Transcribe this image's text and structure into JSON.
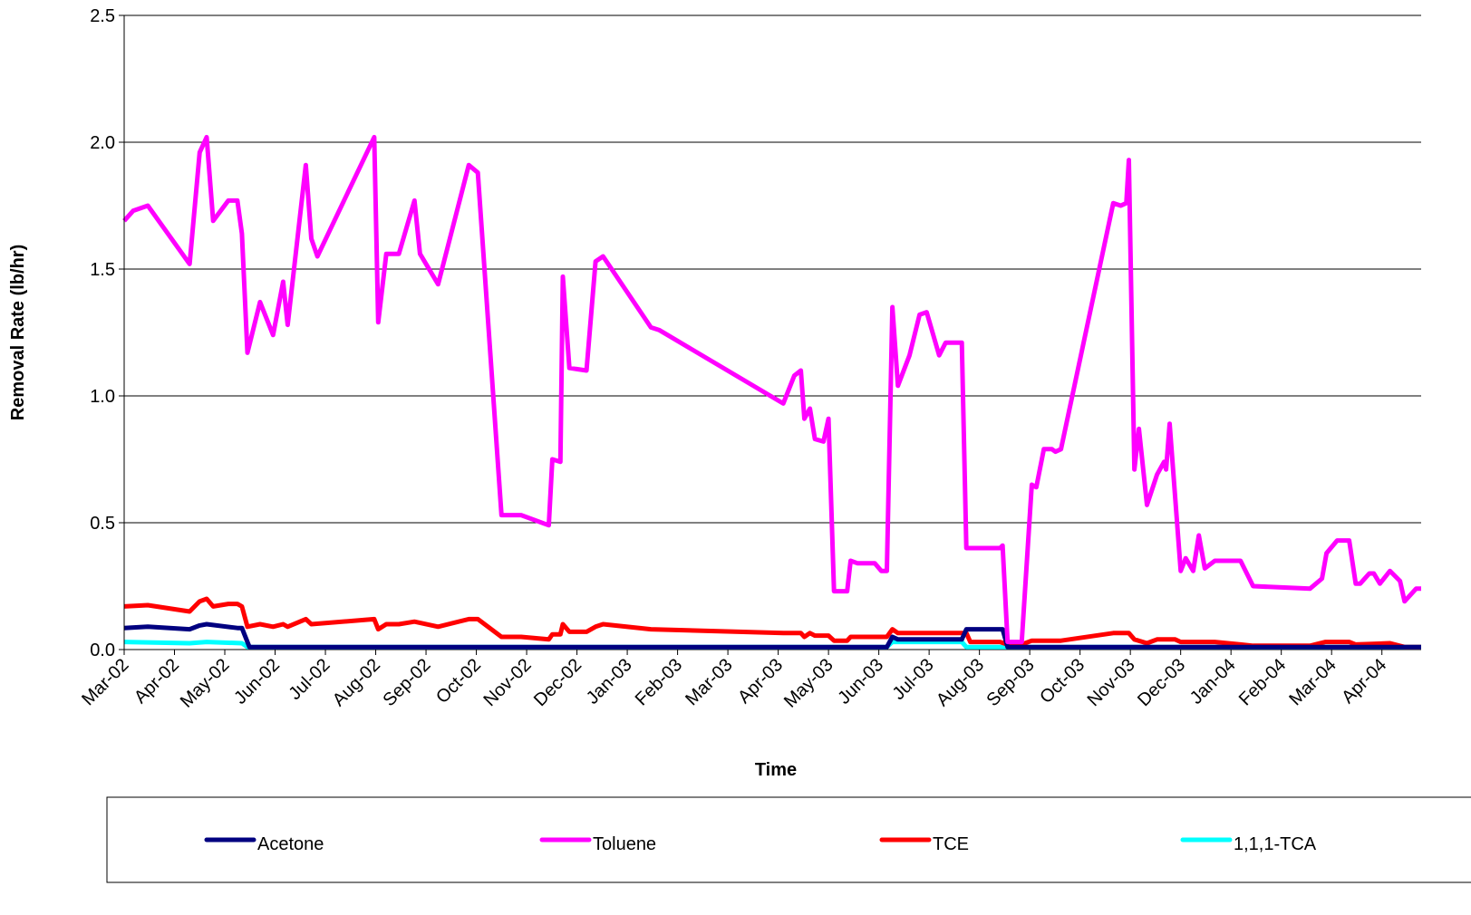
{
  "chart_data": {
    "type": "line",
    "x_label": "Time",
    "y_label": "Removal Rate (lb/hr)",
    "xlim": [
      0,
      25.78
    ],
    "ylim": [
      0,
      2.5
    ],
    "xticks": [
      {
        "value": 0,
        "label": "Mar-02"
      },
      {
        "value": 1,
        "label": "Apr-02"
      },
      {
        "value": 2,
        "label": "May-02"
      },
      {
        "value": 3,
        "label": "Jun-02"
      },
      {
        "value": 4,
        "label": "Jul-02"
      },
      {
        "value": 5,
        "label": "Aug-02"
      },
      {
        "value": 6,
        "label": "Sep-02"
      },
      {
        "value": 7,
        "label": "Oct-02"
      },
      {
        "value": 8,
        "label": "Nov-02"
      },
      {
        "value": 9,
        "label": "Dec-02"
      },
      {
        "value": 10,
        "label": "Jan-03"
      },
      {
        "value": 11,
        "label": "Feb-03"
      },
      {
        "value": 12,
        "label": "Mar-03"
      },
      {
        "value": 13,
        "label": "Apr-03"
      },
      {
        "value": 14,
        "label": "May-03"
      },
      {
        "value": 15,
        "label": "Jun-03"
      },
      {
        "value": 16,
        "label": "Jul-03"
      },
      {
        "value": 17,
        "label": "Aug-03"
      },
      {
        "value": 18,
        "label": "Sep-03"
      },
      {
        "value": 19,
        "label": "Oct-03"
      },
      {
        "value": 20,
        "label": "Nov-03"
      },
      {
        "value": 21,
        "label": "Dec-03"
      },
      {
        "value": 22,
        "label": "Jan-04"
      },
      {
        "value": 23,
        "label": "Feb-04"
      },
      {
        "value": 24,
        "label": "Mar-04"
      },
      {
        "value": 25,
        "label": "Apr-04"
      }
    ],
    "yticks": [
      {
        "value": 0,
        "label": "0.0"
      },
      {
        "value": 0.5,
        "label": "0.5"
      },
      {
        "value": 1,
        "label": "1.0"
      },
      {
        "value": 1.5,
        "label": "1.5"
      },
      {
        "value": 2,
        "label": "2.0"
      },
      {
        "value": 2.5,
        "label": "2.5"
      }
    ],
    "grid": true,
    "legend": "bottom",
    "series": [
      {
        "name": "Acetone",
        "color": "#000080",
        "x": [
          0,
          0.47,
          1.3,
          1.5,
          1.64,
          2.25,
          2.34,
          2.49,
          15.16,
          15.27,
          15.38,
          16.65,
          16.74,
          17.46,
          17.56,
          25.78
        ],
        "values": [
          0.085,
          0.09,
          0.08,
          0.095,
          0.1,
          0.085,
          0.085,
          0.01,
          0.01,
          0.05,
          0.04,
          0.04,
          0.08,
          0.08,
          0.01,
          0.01
        ]
      },
      {
        "name": "Toluene",
        "color": "#ff00ff",
        "x": [
          0,
          0.18,
          0.47,
          1.3,
          1.5,
          1.64,
          1.77,
          2.07,
          2.25,
          2.34,
          2.45,
          2.7,
          2.96,
          3.16,
          3.25,
          3.61,
          3.72,
          3.84,
          4.97,
          5.05,
          5.21,
          5.46,
          5.77,
          5.88,
          6.24,
          6.85,
          7.03,
          7.5,
          7.89,
          8.44,
          8.51,
          8.67,
          8.72,
          8.85,
          9.19,
          9.37,
          9.52,
          10.47,
          10.63,
          13.1,
          13.32,
          13.45,
          13.52,
          13.63,
          13.73,
          13.9,
          14,
          14.11,
          14.37,
          14.44,
          14.58,
          14.92,
          15.05,
          15.16,
          15.27,
          15.38,
          15.61,
          15.81,
          15.95,
          16.2,
          16.33,
          16.65,
          16.74,
          17.41,
          17.46,
          17.56,
          17.84,
          18.04,
          18.13,
          18.28,
          18.44,
          18.51,
          18.62,
          19.66,
          19.81,
          19.92,
          19.97,
          20.08,
          20.17,
          20.33,
          20.53,
          20.67,
          20.71,
          20.78,
          21,
          21.1,
          21.25,
          21.36,
          21.48,
          21.68,
          22.19,
          22.44,
          23.57,
          23.81,
          23.9,
          24.11,
          24.35,
          24.48,
          24.57,
          24.75,
          24.84,
          24.96,
          25.16,
          25.36,
          25.45,
          25.68,
          25.78
        ],
        "values": [
          1.69,
          1.73,
          1.75,
          1.52,
          1.96,
          2.02,
          1.69,
          1.77,
          1.77,
          1.64,
          1.17,
          1.37,
          1.24,
          1.45,
          1.28,
          1.91,
          1.62,
          1.55,
          2.02,
          1.29,
          1.56,
          1.56,
          1.77,
          1.56,
          1.44,
          1.91,
          1.88,
          0.53,
          0.53,
          0.49,
          0.75,
          0.74,
          1.47,
          1.11,
          1.1,
          1.53,
          1.55,
          1.27,
          1.26,
          0.97,
          1.08,
          1.1,
          0.91,
          0.95,
          0.83,
          0.82,
          0.91,
          0.23,
          0.23,
          0.35,
          0.34,
          0.34,
          0.31,
          0.31,
          1.35,
          1.04,
          1.16,
          1.32,
          1.33,
          1.16,
          1.21,
          1.21,
          0.4,
          0.4,
          0.41,
          0.03,
          0.03,
          0.65,
          0.64,
          0.79,
          0.79,
          0.78,
          0.79,
          1.76,
          1.75,
          1.76,
          1.93,
          0.71,
          0.87,
          0.57,
          0.69,
          0.74,
          0.71,
          0.89,
          0.31,
          0.36,
          0.31,
          0.45,
          0.32,
          0.35,
          0.35,
          0.25,
          0.24,
          0.28,
          0.38,
          0.43,
          0.43,
          0.26,
          0.26,
          0.3,
          0.3,
          0.26,
          0.31,
          0.27,
          0.19,
          0.24,
          0.24
        ]
      },
      {
        "name": "TCE",
        "color": "#ff0000",
        "x": [
          0,
          0.47,
          1.3,
          1.5,
          1.64,
          1.77,
          2.07,
          2.25,
          2.34,
          2.45,
          2.7,
          2.96,
          3.16,
          3.25,
          3.61,
          3.72,
          4.97,
          5.05,
          5.21,
          5.46,
          5.77,
          6.24,
          6.85,
          7.03,
          7.5,
          7.89,
          8.44,
          8.51,
          8.67,
          8.72,
          8.85,
          9.19,
          9.37,
          9.52,
          10.47,
          13.1,
          13.45,
          13.52,
          13.63,
          13.73,
          14,
          14.11,
          14.37,
          14.44,
          15.16,
          15.27,
          15.38,
          16.74,
          16.82,
          17.41,
          17.56,
          17.84,
          18.04,
          18.62,
          19.66,
          19.97,
          20.08,
          20.33,
          20.53,
          20.89,
          21,
          21.68,
          22.19,
          22.44,
          23.57,
          23.88,
          24.35,
          24.48,
          25.16,
          25.45,
          25.78
        ],
        "values": [
          0.17,
          0.175,
          0.15,
          0.19,
          0.2,
          0.17,
          0.18,
          0.18,
          0.17,
          0.09,
          0.1,
          0.09,
          0.1,
          0.09,
          0.12,
          0.1,
          0.12,
          0.08,
          0.1,
          0.1,
          0.11,
          0.09,
          0.12,
          0.12,
          0.05,
          0.05,
          0.04,
          0.06,
          0.06,
          0.1,
          0.07,
          0.07,
          0.09,
          0.1,
          0.08,
          0.065,
          0.065,
          0.05,
          0.065,
          0.055,
          0.055,
          0.035,
          0.035,
          0.05,
          0.05,
          0.08,
          0.065,
          0.065,
          0.03,
          0.03,
          0.02,
          0.02,
          0.035,
          0.035,
          0.065,
          0.065,
          0.04,
          0.025,
          0.04,
          0.04,
          0.03,
          0.03,
          0.02,
          0.015,
          0.015,
          0.03,
          0.03,
          0.02,
          0.025,
          0.01,
          0.01
        ]
      },
      {
        "name": "1,1,1-TCA",
        "color": "#00ffff",
        "x": [
          0,
          1.3,
          1.64,
          2.34,
          2.45,
          15.16,
          15.27,
          16.65,
          16.74,
          25.78
        ],
        "values": [
          0.03,
          0.025,
          0.03,
          0.025,
          0.01,
          0.01,
          0.03,
          0.03,
          0.01,
          0.01
        ]
      }
    ]
  }
}
